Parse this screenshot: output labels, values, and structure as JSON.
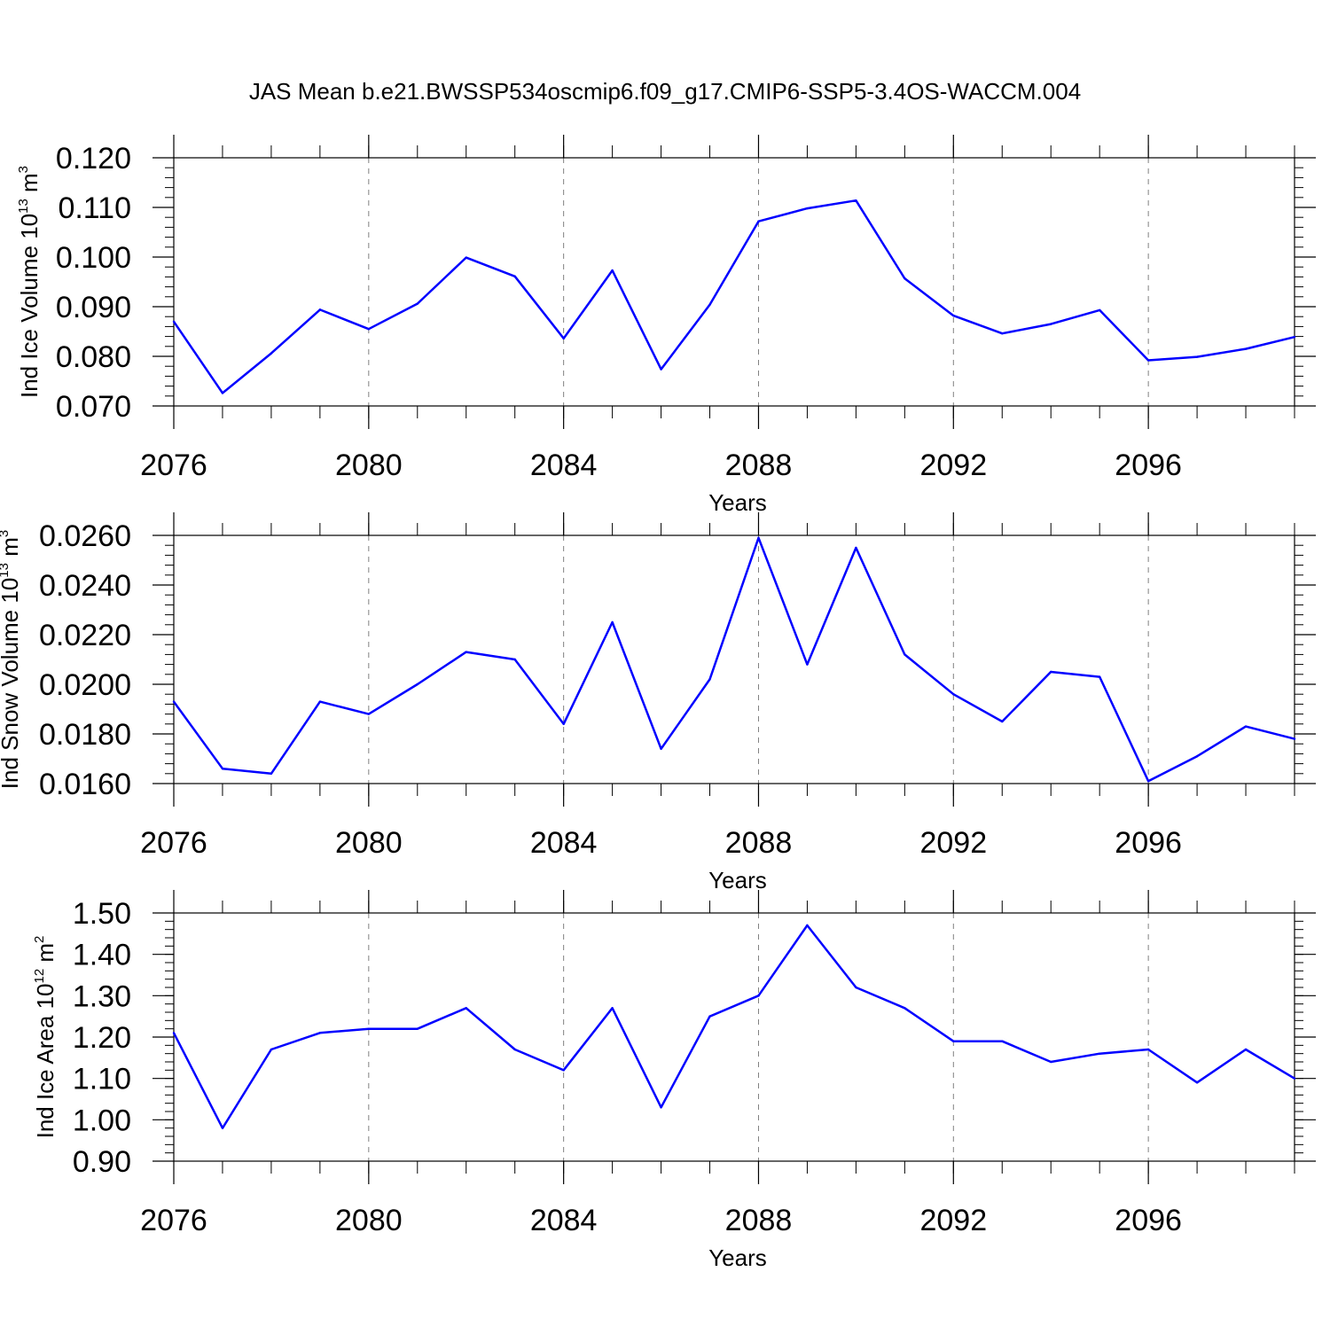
{
  "title": "JAS Mean b.e21.BWSSP534oscmip6.f09_g17.CMIP6-SSP5-3.4OS-WACCM.004",
  "colors": {
    "line": "#0000ff",
    "axis": "#000000",
    "grid": "#808080"
  },
  "chart_data": [
    {
      "type": "line",
      "xlabel": "Years",
      "ylabel": {
        "text": "Ind Ice Volume 10",
        "sup1": "13",
        "mid": " m",
        "sup2": "3"
      },
      "xlim": [
        2076,
        2099
      ],
      "xticks": [
        "2076",
        "2080",
        "2084",
        "2088",
        "2092",
        "2096"
      ],
      "ylim": [
        0.07,
        0.12
      ],
      "yticks": [
        "0.070",
        "0.080",
        "0.090",
        "0.100",
        "0.110",
        "0.120"
      ],
      "ytick_values": [
        0.07,
        0.08,
        0.09,
        0.1,
        0.11,
        0.12
      ],
      "yminor_step": 0.002,
      "x": [
        2076,
        2077,
        2078,
        2079,
        2080,
        2081,
        2082,
        2083,
        2084,
        2085,
        2086,
        2087,
        2088,
        2089,
        2090,
        2091,
        2092,
        2093,
        2094,
        2095,
        2096,
        2097,
        2098,
        2099
      ],
      "series": [
        {
          "name": "Ind Ice Volume",
          "values": [
            0.087,
            0.0726,
            0.0806,
            0.0894,
            0.0855,
            0.0906,
            0.0999,
            0.0961,
            0.0836,
            0.0973,
            0.0774,
            0.0904,
            0.1072,
            0.1098,
            0.1114,
            0.0957,
            0.0882,
            0.0846,
            0.0865,
            0.0893,
            0.0792,
            0.0799,
            0.0815,
            0.0839
          ]
        }
      ]
    },
    {
      "type": "line",
      "xlabel": "Years",
      "ylabel": {
        "text": "Ind Snow Volume 10",
        "sup1": "13",
        "mid": " m",
        "sup2": "3"
      },
      "xlim": [
        2076,
        2099
      ],
      "xticks": [
        "2076",
        "2080",
        "2084",
        "2088",
        "2092",
        "2096"
      ],
      "ylim": [
        0.016,
        0.026
      ],
      "yticks": [
        "0.0160",
        "0.0180",
        "0.0200",
        "0.0220",
        "0.0240",
        "0.0260"
      ],
      "ytick_values": [
        0.016,
        0.018,
        0.02,
        0.022,
        0.024,
        0.026
      ],
      "yminor_step": 0.0004,
      "x": [
        2076,
        2077,
        2078,
        2079,
        2080,
        2081,
        2082,
        2083,
        2084,
        2085,
        2086,
        2087,
        2088,
        2089,
        2090,
        2091,
        2092,
        2093,
        2094,
        2095,
        2096,
        2097,
        2098,
        2099
      ],
      "series": [
        {
          "name": "Ind Snow Volume",
          "values": [
            0.0193,
            0.0166,
            0.0164,
            0.0193,
            0.0188,
            0.02,
            0.0213,
            0.021,
            0.0184,
            0.0225,
            0.0174,
            0.0202,
            0.0259,
            0.0208,
            0.0255,
            0.0212,
            0.0196,
            0.0185,
            0.0205,
            0.0203,
            0.0161,
            0.0171,
            0.0183,
            0.0178
          ]
        }
      ]
    },
    {
      "type": "line",
      "xlabel": "Years",
      "ylabel": {
        "text": "Ind Ice Area 10",
        "sup1": "12",
        "mid": " m",
        "sup2": "2"
      },
      "xlim": [
        2076,
        2099
      ],
      "xticks": [
        "2076",
        "2080",
        "2084",
        "2088",
        "2092",
        "2096"
      ],
      "ylim": [
        0.9,
        1.5
      ],
      "yticks": [
        "0.90",
        "1.00",
        "1.10",
        "1.20",
        "1.30",
        "1.40",
        "1.50"
      ],
      "ytick_values": [
        0.9,
        1.0,
        1.1,
        1.2,
        1.3,
        1.4,
        1.5
      ],
      "yminor_step": 0.02,
      "x": [
        2076,
        2077,
        2078,
        2079,
        2080,
        2081,
        2082,
        2083,
        2084,
        2085,
        2086,
        2087,
        2088,
        2089,
        2090,
        2091,
        2092,
        2093,
        2094,
        2095,
        2096,
        2097,
        2098,
        2099
      ],
      "series": [
        {
          "name": "Ind Ice Area",
          "values": [
            1.21,
            0.98,
            1.17,
            1.21,
            1.22,
            1.22,
            1.27,
            1.17,
            1.12,
            1.27,
            1.03,
            1.25,
            1.3,
            1.47,
            1.32,
            1.27,
            1.19,
            1.19,
            1.14,
            1.16,
            1.17,
            1.09,
            1.17,
            1.1
          ]
        }
      ]
    }
  ]
}
